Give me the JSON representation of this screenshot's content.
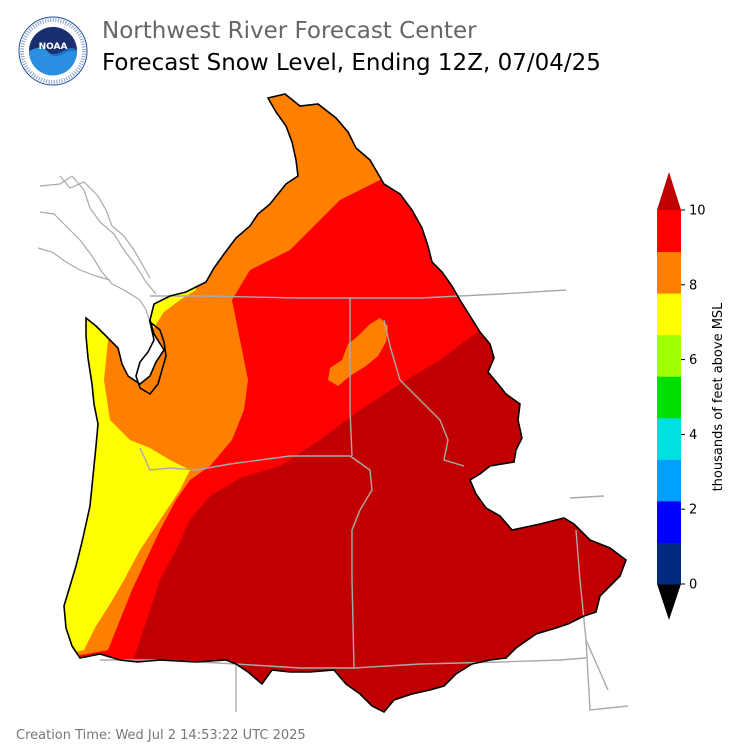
{
  "header": {
    "agency": "Northwest River Forecast Center",
    "product": "Forecast Snow Level, Ending 12Z, 07/04/25",
    "logo_text": "NOAA",
    "logo_ring_text": "NATIONAL OCEANIC AND ATMOSPHERIC ADMINISTRATION · U.S. DEPARTMENT OF COMMERCE"
  },
  "colorbar": {
    "label": "thousands of feet above MSL",
    "ticks": [
      "0",
      "2",
      "4",
      "6",
      "8",
      "10"
    ],
    "colors": [
      "#000000",
      "#002a7f",
      "#0000ff",
      "#00a0ff",
      "#00e0e0",
      "#00e000",
      "#a0ff00",
      "#ffff00",
      "#ff8000",
      "#ff0000",
      "#c00000"
    ]
  },
  "map_colors": {
    "yellow": "#ffff00",
    "orange": "#ff8000",
    "red": "#ff0000",
    "dark_red": "#c00000",
    "border": "#aaaaaa",
    "coast": "#000000"
  },
  "footer": {
    "creation_time": "Creation Time: Wed Jul 2 14:53:22 UTC 2025"
  }
}
